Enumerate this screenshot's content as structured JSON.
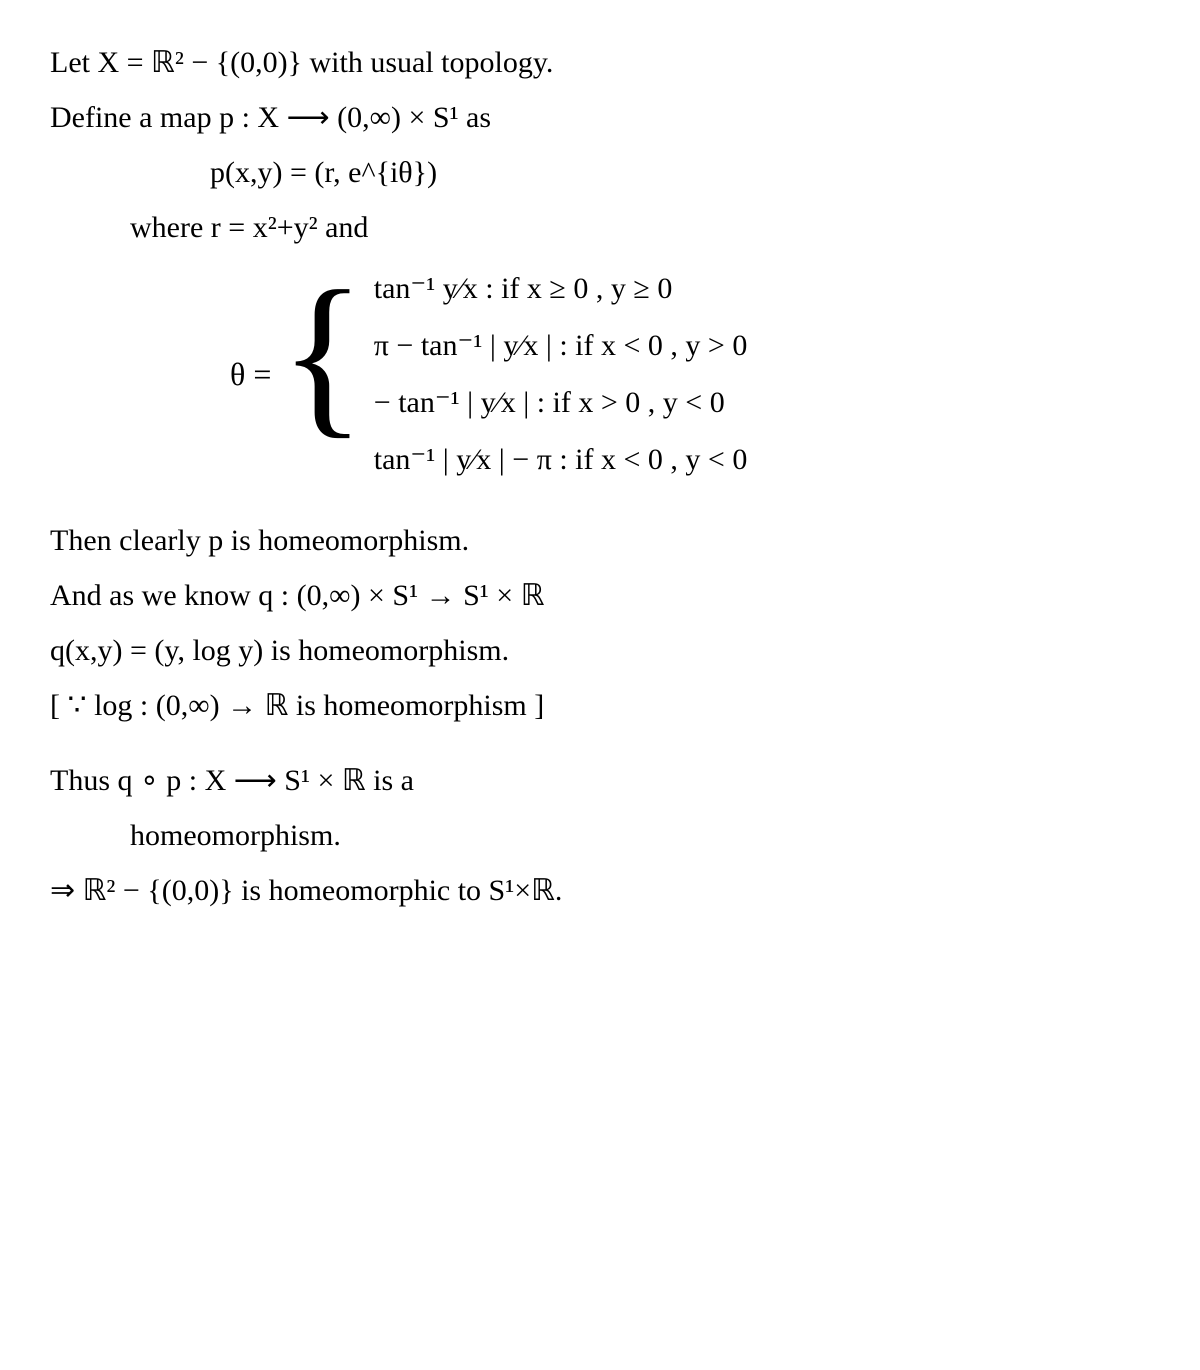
{
  "line1": "Let   X = ℝ² − {(0,0)}  with  usual  topology.",
  "line2": "Define  a   map   p : X  ⟶  (0,∞) × S¹   as",
  "line3": "p(x,y) = (r, e^{iθ})",
  "line4": "where   r = x²+y²   and",
  "theta_label": "θ =",
  "cases": {
    "c1": "tan⁻¹ y⁄x   :  if   x ≥ 0 ,  y ≥ 0",
    "c2": "π − tan⁻¹ | y⁄x |   :  if   x < 0 ,  y > 0",
    "c3": "− tan⁻¹ | y⁄x |   :  if   x > 0 ,  y < 0",
    "c4": "tan⁻¹ | y⁄x | − π   :  if   x < 0 ,  y < 0"
  },
  "line5": "Then  clearly  p  is  homeomorphism.",
  "line6": "And   as   we   know   q : (0,∞) × S¹ → S¹ × ℝ",
  "line7": "q(x,y) = (y, log y)   is  homeomorphism.",
  "line8": "[ ∵  log : (0,∞) → ℝ  is  homeomorphism ]",
  "line9": "Thus   q ∘ p : X  ⟶  S¹ × ℝ   is  a",
  "line10": "homeomorphism.",
  "line11": "⇒  ℝ² − {(0,0)}  is  homeomorphic  to  S¹×ℝ."
}
